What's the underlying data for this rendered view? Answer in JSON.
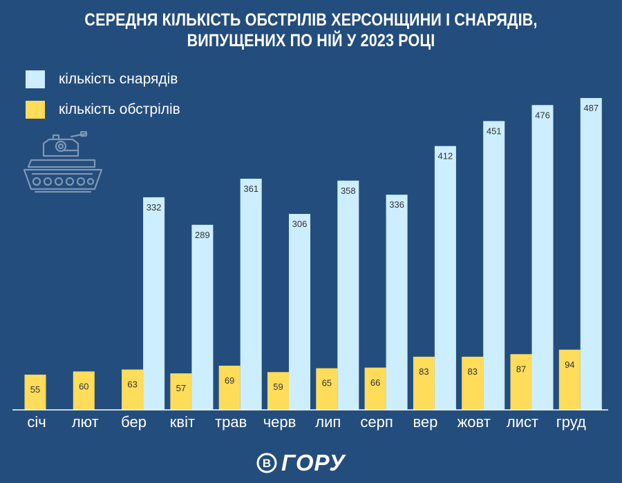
{
  "title": {
    "line1": "СЕРЕДНЯ КІЛЬКІСТЬ ОБСТРІЛІВ ХЕРСОНЩИНИ І СНАРЯДІВ,",
    "line2": "ВИПУЩЕНИХ ПО НІЙ У 2023 РОЦІ"
  },
  "colors": {
    "background": "#234d7c",
    "shells": "#cdeeff",
    "attacks": "#ffdc5a",
    "label_text": "#333333",
    "axis": "#ffffff"
  },
  "icons": {
    "tank": "tank-icon",
    "logo": "vgoru-logo"
  },
  "logo": {
    "mark": "В",
    "text": "ГОРУ"
  },
  "chart_data": {
    "type": "bar",
    "title": "СЕРЕДНЯ КІЛЬКІСТЬ ОБСТРІЛІВ ХЕРСОНЩИНИ І СНАРЯДІВ, ВИПУЩЕНИХ ПО НІЙ У 2023 РОЦІ",
    "xlabel": "",
    "ylabel": "",
    "ylim": [
      0,
      500
    ],
    "grid": false,
    "legend_position": "top-left",
    "categories": [
      "січ",
      "лют",
      "бер",
      "квіт",
      "трав",
      "черв",
      "лип",
      "серп",
      "вер",
      "жовт",
      "лист",
      "груд"
    ],
    "series": [
      {
        "name": "кількість снарядів",
        "color": "#cdeeff",
        "values": [
          null,
          null,
          332,
          289,
          361,
          306,
          358,
          336,
          412,
          451,
          476,
          487
        ]
      },
      {
        "name": "кількість обстрілів",
        "color": "#ffdc5a",
        "values": [
          55,
          60,
          63,
          57,
          69,
          59,
          65,
          66,
          83,
          83,
          87,
          94
        ]
      }
    ]
  }
}
